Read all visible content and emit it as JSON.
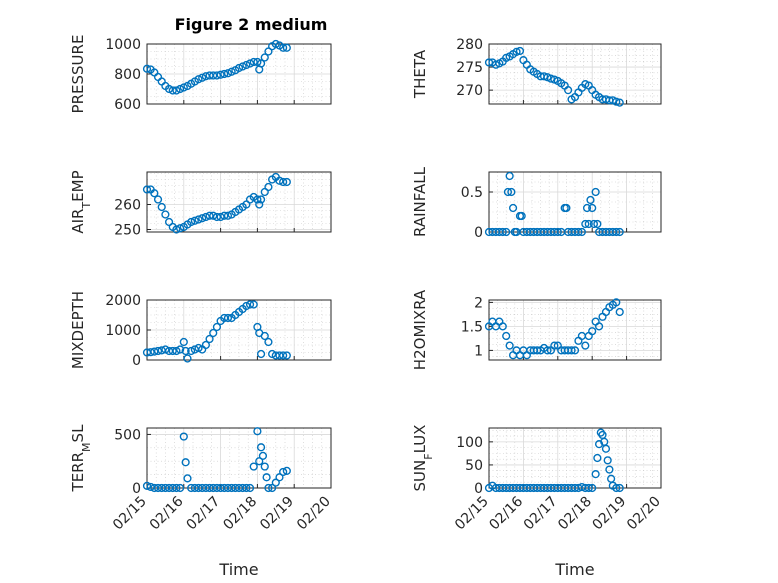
{
  "figure_title": "Figure 2 medium",
  "colors": {
    "series": "#0072BD",
    "axis": "#262626",
    "grid": "#d9d9d9",
    "background": "#ffffff"
  },
  "chart_data": [
    {
      "type": "scatter",
      "title": "Figure 2 medium",
      "ylabel": "PRESSURE",
      "xlabel": "",
      "ylim": [
        600,
        1000
      ],
      "yticks": [
        600,
        800,
        1000
      ],
      "xlim": [
        0,
        5
      ],
      "xticklabels": [],
      "grid": true,
      "series": [
        {
          "x": [
            0.0,
            0.1,
            0.2,
            0.3,
            0.4,
            0.5,
            0.6,
            0.7,
            0.8,
            0.9,
            1.0,
            1.1,
            1.2,
            1.3,
            1.4,
            1.5,
            1.6,
            1.7,
            1.8,
            1.9,
            2.0,
            2.1,
            2.2,
            2.3,
            2.4,
            2.5,
            2.6,
            2.7,
            2.8,
            2.9,
            3.0,
            3.05,
            3.1,
            3.2,
            3.3,
            3.4,
            3.5,
            3.6,
            3.7,
            3.8
          ],
          "y": [
            835,
            830,
            810,
            780,
            750,
            720,
            700,
            690,
            690,
            700,
            710,
            720,
            735,
            750,
            765,
            775,
            785,
            790,
            790,
            790,
            795,
            800,
            805,
            815,
            825,
            840,
            850,
            860,
            870,
            880,
            880,
            830,
            870,
            910,
            950,
            985,
            1000,
            990,
            975,
            975
          ]
        }
      ]
    },
    {
      "type": "scatter",
      "ylabel": "THETA",
      "xlabel": "",
      "ylim": [
        267,
        280
      ],
      "yticks": [
        270,
        275,
        280
      ],
      "xlim": [
        0,
        5
      ],
      "xticklabels": [],
      "grid": true,
      "series": [
        {
          "x": [
            0.0,
            0.1,
            0.2,
            0.3,
            0.4,
            0.5,
            0.6,
            0.7,
            0.8,
            0.9,
            1.0,
            1.1,
            1.2,
            1.3,
            1.4,
            1.5,
            1.6,
            1.7,
            1.8,
            1.9,
            2.0,
            2.1,
            2.2,
            2.3,
            2.4,
            2.5,
            2.6,
            2.7,
            2.8,
            2.9,
            3.0,
            3.1,
            3.2,
            3.3,
            3.4,
            3.5,
            3.6,
            3.7,
            3.8
          ],
          "y": [
            276,
            276,
            275.5,
            275.8,
            276.2,
            277,
            277.3,
            277.8,
            278.3,
            278.5,
            276.5,
            275.5,
            274.5,
            274,
            273.5,
            273,
            273,
            272.8,
            272.5,
            272.3,
            272,
            271.5,
            271,
            270,
            268,
            268.5,
            269.5,
            270.5,
            271.3,
            271,
            270,
            269,
            268.5,
            268,
            268,
            267.8,
            267.8,
            267.5,
            267.3
          ]
        }
      ]
    },
    {
      "type": "scatter",
      "ylabel": "AIR_TEMP",
      "xlabel": "",
      "ylim": [
        249,
        273
      ],
      "yticks": [
        250,
        260
      ],
      "xlim": [
        0,
        5
      ],
      "xticklabels": [],
      "grid": true,
      "series": [
        {
          "x": [
            0.0,
            0.1,
            0.2,
            0.3,
            0.4,
            0.5,
            0.6,
            0.7,
            0.8,
            0.9,
            1.0,
            1.1,
            1.2,
            1.3,
            1.4,
            1.5,
            1.6,
            1.7,
            1.8,
            1.9,
            2.0,
            2.1,
            2.2,
            2.3,
            2.4,
            2.5,
            2.6,
            2.7,
            2.8,
            2.9,
            3.0,
            3.05,
            3.1,
            3.2,
            3.3,
            3.4,
            3.5,
            3.6,
            3.7,
            3.8
          ],
          "y": [
            266,
            266,
            264.5,
            262,
            259,
            256,
            253,
            251,
            250,
            250.5,
            251,
            252,
            253,
            253.5,
            254,
            254.5,
            255,
            255.5,
            255.5,
            255,
            255,
            255.5,
            255.5,
            256,
            257,
            258,
            259,
            260,
            262,
            263,
            262,
            260,
            262,
            265,
            267,
            270,
            271,
            269.5,
            269,
            269
          ]
        }
      ]
    },
    {
      "type": "scatter",
      "ylabel": "RAINFALL",
      "xlabel": "",
      "ylim": [
        0,
        0.75
      ],
      "yticks": [
        0,
        0.5
      ],
      "yticklabels": [
        "0",
        "0.5"
      ],
      "xlim": [
        0,
        5
      ],
      "xticklabels": [],
      "grid": true,
      "series": [
        {
          "x": [
            0.0,
            0.1,
            0.2,
            0.3,
            0.4,
            0.5,
            0.55,
            0.6,
            0.65,
            0.7,
            0.75,
            0.8,
            0.9,
            0.95,
            1.0,
            1.1,
            1.2,
            1.3,
            1.4,
            1.5,
            1.6,
            1.7,
            1.8,
            1.9,
            2.0,
            2.1,
            2.2,
            2.25,
            2.3,
            2.4,
            2.5,
            2.6,
            2.7,
            2.8,
            2.85,
            2.9,
            2.95,
            3.0,
            3.05,
            3.1,
            3.15,
            3.2,
            3.3,
            3.4,
            3.5,
            3.6,
            3.7,
            3.8
          ],
          "y": [
            0,
            0,
            0,
            0,
            0,
            0,
            0.5,
            0.7,
            0.5,
            0.3,
            0,
            0,
            0.2,
            0.2,
            0,
            0,
            0,
            0,
            0,
            0,
            0,
            0,
            0,
            0,
            0,
            0,
            0.3,
            0.3,
            0,
            0,
            0,
            0,
            0,
            0.1,
            0.3,
            0.1,
            0.4,
            0.3,
            0.1,
            0.5,
            0.1,
            0,
            0,
            0,
            0,
            0,
            0,
            0
          ]
        }
      ]
    },
    {
      "type": "scatter",
      "ylabel": "MIXDEPTH",
      "xlabel": "",
      "ylim": [
        0,
        2000
      ],
      "yticks": [
        0,
        1000,
        2000
      ],
      "xlim": [
        0,
        5
      ],
      "xticklabels": [],
      "grid": true,
      "series": [
        {
          "x": [
            0.0,
            0.1,
            0.2,
            0.3,
            0.4,
            0.5,
            0.6,
            0.7,
            0.8,
            0.9,
            1.0,
            1.05,
            1.1,
            1.2,
            1.3,
            1.4,
            1.5,
            1.6,
            1.7,
            1.8,
            1.9,
            2.0,
            2.1,
            2.2,
            2.3,
            2.4,
            2.5,
            2.6,
            2.7,
            2.8,
            2.9,
            3.0,
            3.05,
            3.1,
            3.2,
            3.3,
            3.4,
            3.5,
            3.6,
            3.7,
            3.8
          ],
          "y": [
            250,
            260,
            280,
            300,
            320,
            350,
            300,
            300,
            300,
            350,
            600,
            300,
            50,
            300,
            350,
            400,
            350,
            500,
            700,
            900,
            1100,
            1300,
            1400,
            1400,
            1400,
            1500,
            1600,
            1700,
            1800,
            1850,
            1850,
            1100,
            900,
            200,
            800,
            600,
            200,
            150,
            150,
            150,
            150
          ]
        }
      ]
    },
    {
      "type": "scatter",
      "ylabel": "H2OMIXRA",
      "xlabel": "",
      "ylim": [
        0.8,
        2.05
      ],
      "yticks": [
        1,
        1.5,
        2
      ],
      "xlim": [
        0,
        5
      ],
      "xticklabels": [],
      "grid": true,
      "series": [
        {
          "x": [
            0.0,
            0.1,
            0.2,
            0.3,
            0.4,
            0.5,
            0.6,
            0.7,
            0.8,
            0.9,
            1.0,
            1.1,
            1.2,
            1.3,
            1.4,
            1.5,
            1.6,
            1.7,
            1.8,
            1.9,
            2.0,
            2.1,
            2.2,
            2.3,
            2.4,
            2.5,
            2.6,
            2.7,
            2.8,
            2.9,
            3.0,
            3.1,
            3.2,
            3.3,
            3.4,
            3.5,
            3.6,
            3.7,
            3.8
          ],
          "y": [
            1.5,
            1.6,
            1.5,
            1.6,
            1.5,
            1.3,
            1.1,
            0.9,
            1.0,
            0.9,
            1.0,
            0.9,
            1.0,
            1.0,
            1.0,
            1.0,
            1.05,
            1.0,
            1.0,
            1.1,
            1.1,
            1.0,
            1.0,
            1.0,
            1.0,
            1.0,
            1.2,
            1.3,
            1.1,
            1.3,
            1.4,
            1.6,
            1.5,
            1.7,
            1.8,
            1.9,
            1.95,
            2.0,
            1.8
          ]
        }
      ]
    },
    {
      "type": "scatter",
      "ylabel": "TERR_MSL",
      "xlabel": "Time",
      "ylim": [
        0,
        560
      ],
      "yticks": [
        0,
        500
      ],
      "xlim": [
        0,
        5
      ],
      "xticklabels": [
        "02/15",
        "02/16",
        "02/17",
        "02/18",
        "02/19",
        "02/20"
      ],
      "grid": true,
      "series": [
        {
          "x": [
            0.0,
            0.1,
            0.2,
            0.3,
            0.4,
            0.5,
            0.6,
            0.7,
            0.8,
            0.9,
            1.0,
            1.05,
            1.1,
            1.2,
            1.3,
            1.4,
            1.5,
            1.6,
            1.7,
            1.8,
            1.9,
            2.0,
            2.1,
            2.2,
            2.3,
            2.4,
            2.5,
            2.6,
            2.7,
            2.8,
            2.9,
            3.0,
            3.05,
            3.1,
            3.15,
            3.2,
            3.25,
            3.3,
            3.4,
            3.5,
            3.6,
            3.7,
            3.8
          ],
          "y": [
            20,
            10,
            0,
            0,
            0,
            0,
            0,
            0,
            0,
            0,
            480,
            240,
            90,
            0,
            0,
            0,
            0,
            0,
            0,
            0,
            0,
            0,
            0,
            0,
            0,
            0,
            0,
            0,
            0,
            0,
            200,
            530,
            250,
            380,
            300,
            200,
            100,
            0,
            0,
            50,
            100,
            150,
            160
          ]
        }
      ]
    },
    {
      "type": "scatter",
      "ylabel": "SUN_FLUX",
      "xlabel": "Time",
      "ylim": [
        0,
        130
      ],
      "yticks": [
        0,
        50,
        100
      ],
      "xlim": [
        0,
        5
      ],
      "xticklabels": [
        "02/15",
        "02/16",
        "02/17",
        "02/18",
        "02/19",
        "02/20"
      ],
      "grid": true,
      "series": [
        {
          "x": [
            0.0,
            0.1,
            0.2,
            0.3,
            0.4,
            0.5,
            0.6,
            0.7,
            0.8,
            0.9,
            1.0,
            1.1,
            1.2,
            1.3,
            1.4,
            1.5,
            1.6,
            1.7,
            1.8,
            1.9,
            2.0,
            2.1,
            2.2,
            2.3,
            2.4,
            2.5,
            2.6,
            2.7,
            2.8,
            2.9,
            3.0,
            3.1,
            3.15,
            3.2,
            3.25,
            3.3,
            3.35,
            3.4,
            3.45,
            3.5,
            3.55,
            3.6,
            3.7,
            3.8
          ],
          "y": [
            0,
            5,
            0,
            0,
            0,
            0,
            0,
            0,
            0,
            0,
            0,
            0,
            0,
            0,
            0,
            0,
            0,
            0,
            0,
            0,
            0,
            0,
            0,
            0,
            0,
            0,
            0,
            2,
            0,
            0,
            0,
            30,
            65,
            95,
            120,
            115,
            100,
            85,
            60,
            40,
            20,
            5,
            0,
            0
          ]
        }
      ]
    }
  ]
}
